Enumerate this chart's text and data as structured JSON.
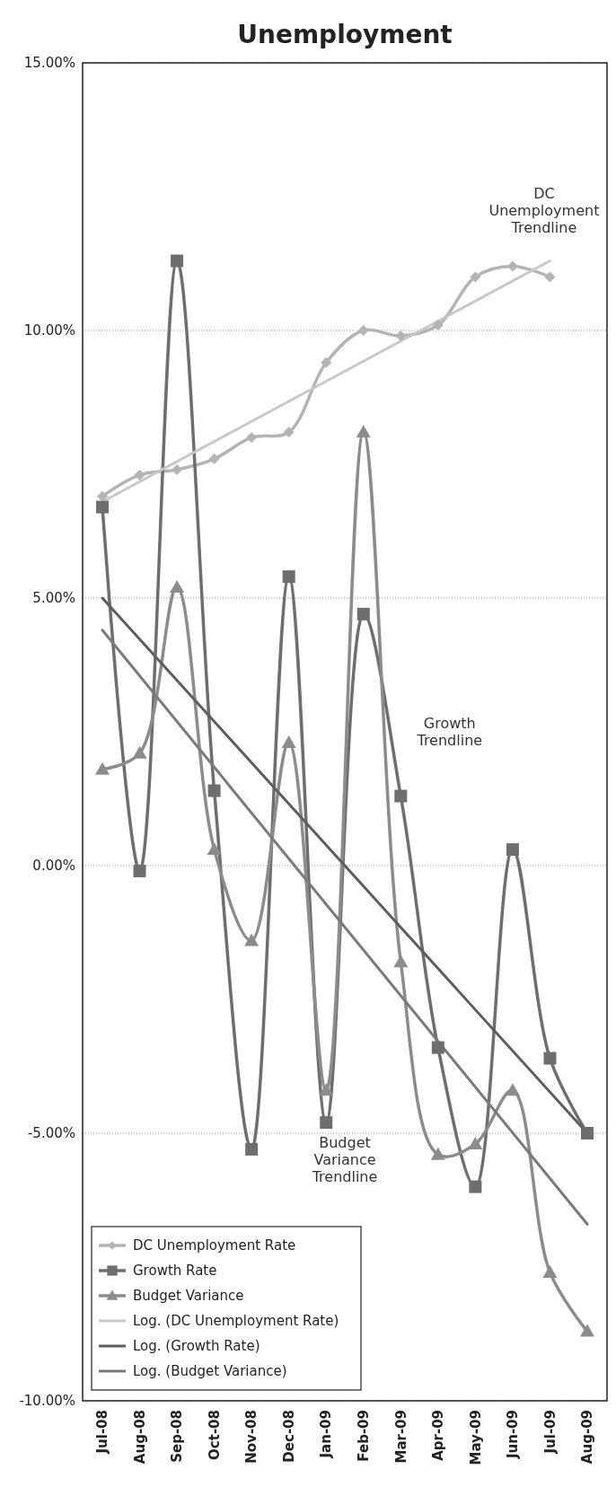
{
  "chart_data": {
    "type": "line",
    "title": "Unemployment",
    "categories": [
      "Jul-08",
      "Aug-08",
      "Sep-08",
      "Oct-08",
      "Nov-08",
      "Dec-08",
      "Jan-09",
      "Feb-09",
      "Mar-09",
      "Apr-09",
      "May-09",
      "Jun-09",
      "Jul-09",
      "Aug-09"
    ],
    "series": [
      {
        "name": "DC Unemployment Rate",
        "color": "#b4b4b4",
        "marker": "diamond",
        "values": [
          6.9,
          7.3,
          7.4,
          7.6,
          8.0,
          8.1,
          9.4,
          10.0,
          9.9,
          10.1,
          11.0,
          11.2,
          11.0,
          null
        ]
      },
      {
        "name": "Growth Rate",
        "color": "#6e6e6e",
        "marker": "square",
        "values": [
          6.7,
          -0.1,
          11.3,
          1.4,
          -5.3,
          5.4,
          -4.8,
          4.7,
          1.3,
          -3.4,
          -6.0,
          0.3,
          -3.6,
          -5.0
        ]
      },
      {
        "name": "Budget Variance",
        "color": "#8c8c8c",
        "marker": "triangle",
        "values": [
          1.8,
          2.1,
          5.2,
          0.3,
          -1.4,
          2.3,
          -4.2,
          8.1,
          -1.8,
          -5.4,
          -5.2,
          -4.2,
          -7.6,
          -8.7
        ]
      },
      {
        "name": "Log. (DC Unemployment Rate)",
        "color": "#c8c8c8",
        "marker": "none",
        "values": [
          6.8,
          null,
          null,
          null,
          null,
          null,
          null,
          null,
          null,
          null,
          null,
          null,
          11.3,
          null
        ]
      },
      {
        "name": "Log. (Growth Rate)",
        "color": "#5e5e5e",
        "marker": "none",
        "values": [
          5.0,
          null,
          null,
          null,
          null,
          null,
          null,
          null,
          null,
          null,
          null,
          null,
          null,
          -5.0
        ]
      },
      {
        "name": "Log. (Budget Variance)",
        "color": "#7a7a7a",
        "marker": "none",
        "values": [
          4.4,
          null,
          null,
          null,
          null,
          null,
          null,
          null,
          null,
          null,
          null,
          null,
          null,
          -6.7
        ]
      }
    ],
    "ylim": [
      -10,
      15
    ],
    "yticks": [
      {
        "value": -10,
        "label": "-10.00%"
      },
      {
        "value": -5,
        "label": "-5.00%"
      },
      {
        "value": 0,
        "label": "0.00%"
      },
      {
        "value": 5,
        "label": "5.00%"
      },
      {
        "value": 10,
        "label": "10.00%"
      },
      {
        "value": 15,
        "label": "15.00%"
      }
    ],
    "grid": "y",
    "legend": "bottom left",
    "line_style": "solid",
    "annotations": [
      "DC Unemployment Trendline",
      "Growth Trendline",
      "Budget Variance Trendline"
    ]
  }
}
